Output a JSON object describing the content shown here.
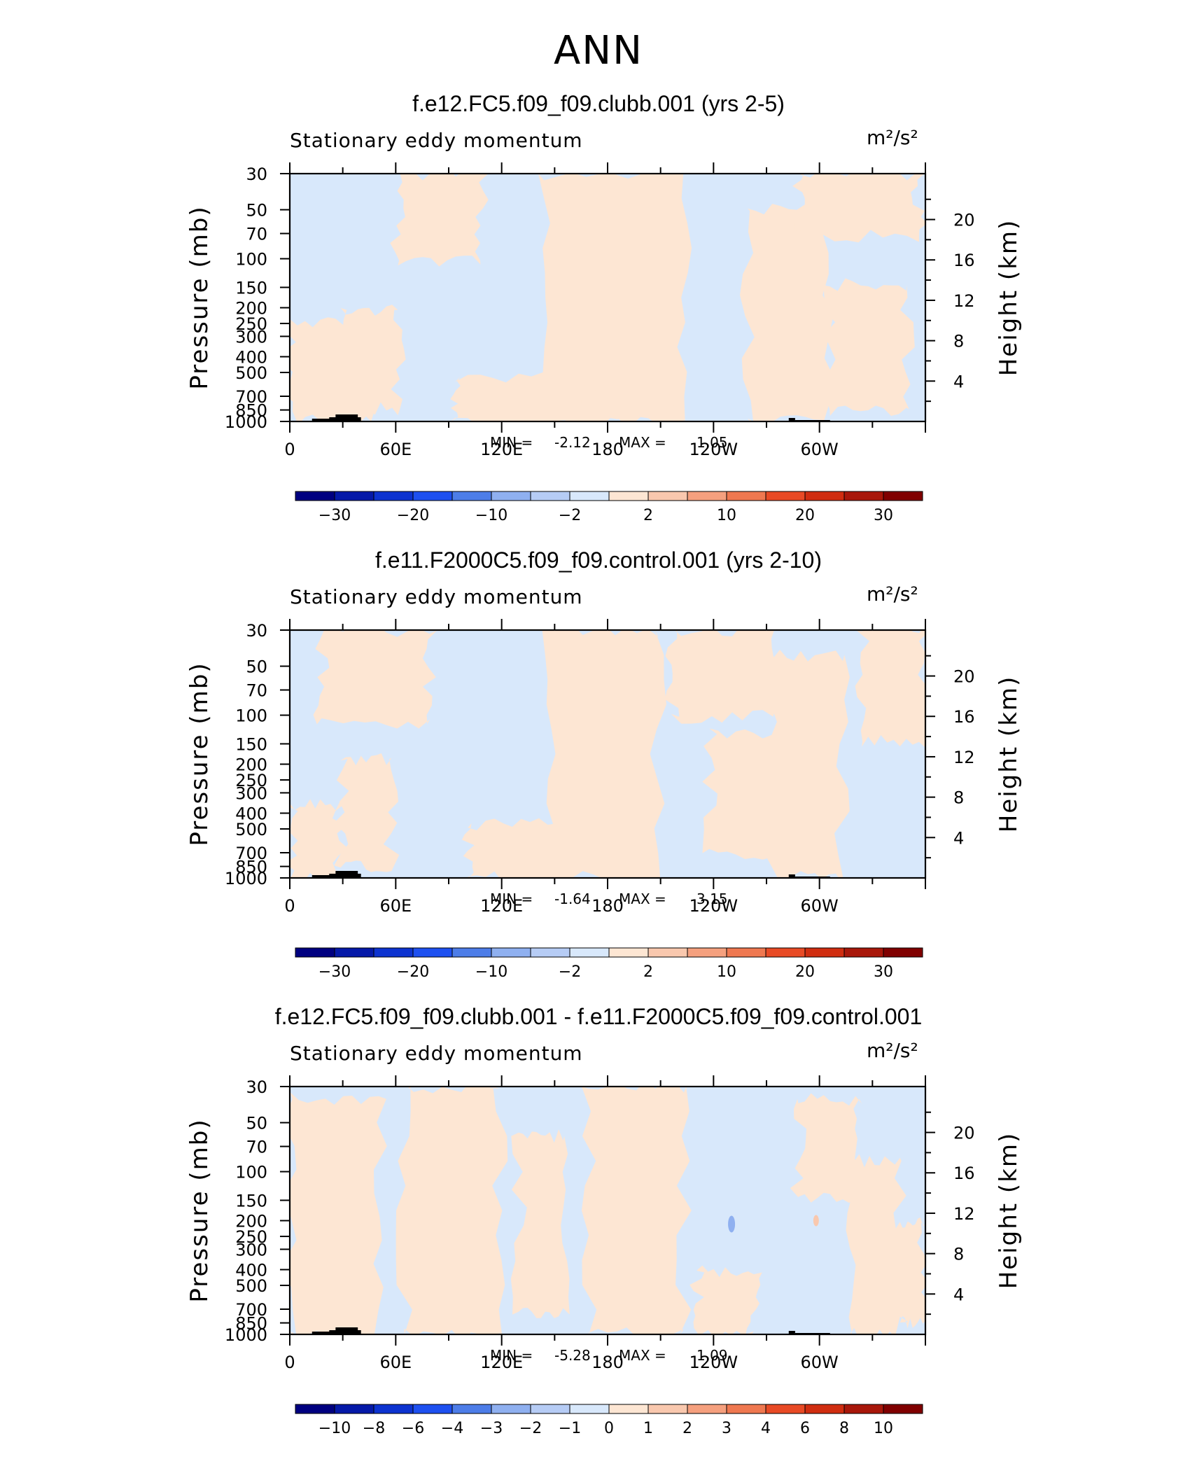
{
  "title": "ANN",
  "chart_data": [
    {
      "type": "heatmap",
      "title": "f.e12.FC5.f09_f09.clubb.001 (yrs 2-5)",
      "variable": "Stationary eddy momentum",
      "units": "m²/s²",
      "ylabel": "Pressure (mb)",
      "ylabel_right": "Height (km)",
      "x_ticks": [
        "0",
        "60E",
        "120E",
        "180",
        "120W",
        "60W"
      ],
      "y_ticks": [
        "30",
        "50",
        "70",
        "100",
        "150",
        "200",
        "250",
        "300",
        "400",
        "500",
        "700",
        "850",
        "1000"
      ],
      "y_ticks_right": [
        "20",
        "16",
        "12",
        "8",
        "4"
      ],
      "min_label": "MIN =",
      "min": "-2.12",
      "max_label": "MAX =",
      "max": "1.05",
      "colorbar_labels": [
        "−30",
        "−20",
        "−10",
        "−2",
        "2",
        "10",
        "20",
        "30"
      ],
      "colors": [
        "#000080",
        "#0519a8",
        "#0d33d0",
        "#1e50f0",
        "#4d7de8",
        "#8fb0f0",
        "#b6ccf5",
        "#d8e8fb",
        "#fde6d3",
        "#f9c8ae",
        "#f5a07e",
        "#ef7850",
        "#e84a25",
        "#d02d10",
        "#a8170a",
        "#800000"
      ]
    },
    {
      "type": "heatmap",
      "title": "f.e11.F2000C5.f09_f09.control.001 (yrs 2-10)",
      "variable": "Stationary eddy momentum",
      "units": "m²/s²",
      "ylabel": "Pressure (mb)",
      "ylabel_right": "Height (km)",
      "x_ticks": [
        "0",
        "60E",
        "120E",
        "180",
        "120W",
        "60W"
      ],
      "y_ticks": [
        "30",
        "50",
        "70",
        "100",
        "150",
        "200",
        "250",
        "300",
        "400",
        "500",
        "700",
        "850",
        "1000"
      ],
      "y_ticks_right": [
        "20",
        "16",
        "12",
        "8",
        "4"
      ],
      "min_label": "MIN =",
      "min": "-1.64",
      "max_label": "MAX =",
      "max": "3.15",
      "colorbar_labels": [
        "−30",
        "−20",
        "−10",
        "−2",
        "2",
        "10",
        "20",
        "30"
      ],
      "colors": [
        "#000080",
        "#0519a8",
        "#0d33d0",
        "#1e50f0",
        "#4d7de8",
        "#8fb0f0",
        "#b6ccf5",
        "#d8e8fb",
        "#fde6d3",
        "#f9c8ae",
        "#f5a07e",
        "#ef7850",
        "#e84a25",
        "#d02d10",
        "#a8170a",
        "#800000"
      ]
    },
    {
      "type": "heatmap",
      "title": "f.e12.FC5.f09_f09.clubb.001 - f.e11.F2000C5.f09_f09.control.001",
      "variable": "Stationary eddy momentum",
      "units": "m²/s²",
      "ylabel": "Pressure (mb)",
      "ylabel_right": "Height (km)",
      "x_ticks": [
        "0",
        "60E",
        "120E",
        "180",
        "120W",
        "60W"
      ],
      "y_ticks": [
        "30",
        "50",
        "70",
        "100",
        "150",
        "200",
        "250",
        "300",
        "400",
        "500",
        "700",
        "850",
        "1000"
      ],
      "y_ticks_right": [
        "20",
        "16",
        "12",
        "8",
        "4"
      ],
      "min_label": "MIN =",
      "min": "-5.28",
      "max_label": "MAX =",
      "max": "1.09",
      "colorbar_labels": [
        "−10",
        "−8",
        "−6",
        "−4",
        "−3",
        "−2",
        "−1",
        "0",
        "1",
        "2",
        "3",
        "4",
        "6",
        "8",
        "10"
      ],
      "colors": [
        "#000080",
        "#0519a8",
        "#0d33d0",
        "#1e50f0",
        "#4d7de8",
        "#8fb0f0",
        "#b6ccf5",
        "#d8e8fb",
        "#fde6d3",
        "#f9c8ae",
        "#f5a07e",
        "#ef7850",
        "#e84a25",
        "#d02d10",
        "#a8170a",
        "#800000"
      ]
    }
  ]
}
